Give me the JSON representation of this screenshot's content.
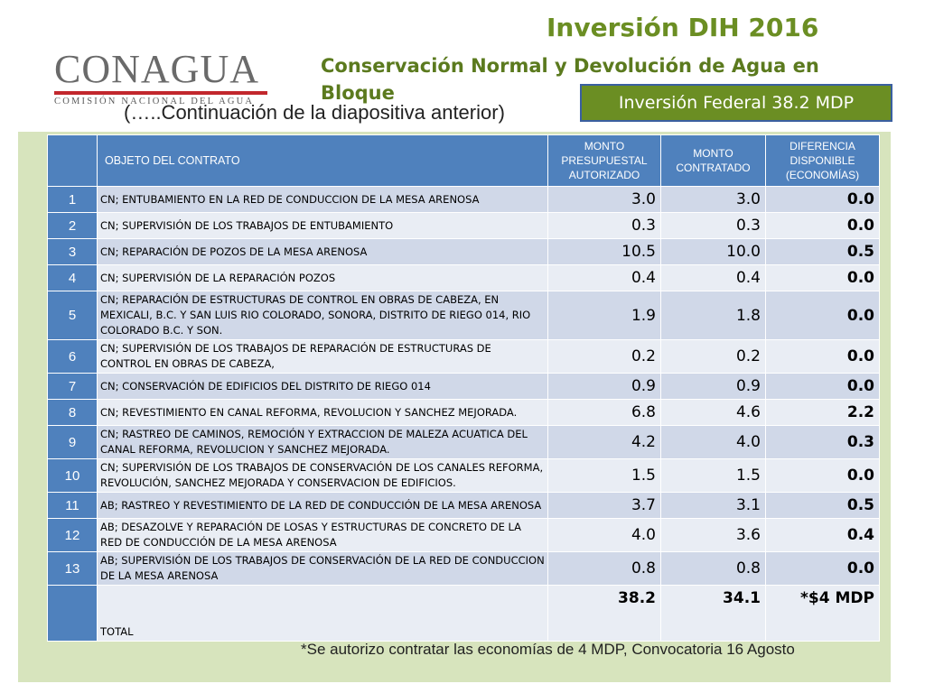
{
  "logo": {
    "word": "CONAGUA",
    "subtitle": "COMISIÓN NACIONAL DEL AGUA",
    "bar_color": "#c2272d"
  },
  "title": "Inversión DIH 2016",
  "subtitle": "Conservación Normal y Devolución de Agua en Bloque",
  "investment_badge": "Inversión Federal 38.2 MDP",
  "continuation_note": "(…..Continuación de la diapositiva anterior)",
  "colors": {
    "title_green": "#6b8e23",
    "header_blue": "#4f81bd",
    "panel_green": "#d7e4bd"
  },
  "table": {
    "headers": {
      "num": "",
      "objeto": "OBJETO DEL CONTRATO",
      "presupuestal": "MONTO PRESUPUESTAL AUTORIZADO",
      "contratado": "MONTO CONTRATADO",
      "diferencia": "DIFERENCIA DISPONIBLE (ECONOMÍAS)"
    },
    "rows": [
      {
        "num": "1",
        "desc": "CN; ENTUBAMIENTO EN LA RED DE CONDUCCION DE LA MESA ARENOSA",
        "autorizado": "3.0",
        "contratado": "3.0",
        "diferencia": "0.0"
      },
      {
        "num": "2",
        "desc": "CN; SUPERVISIÓN DE LOS TRABAJOS DE  ENTUBAMIENTO",
        "autorizado": "0.3",
        "contratado": "0.3",
        "diferencia": "0.0"
      },
      {
        "num": "3",
        "desc": "CN; REPARACIÓN DE POZOS DE LA MESA ARENOSA",
        "autorizado": "10.5",
        "contratado": "10.0",
        "diferencia": "0.5"
      },
      {
        "num": "4",
        "desc": "CN; SUPERVISIÓN DE LA REPARACIÓN  POZOS",
        "autorizado": "0.4",
        "contratado": "0.4",
        "diferencia": "0.0"
      },
      {
        "num": "5",
        "desc": "CN; REPARACIÓN DE ESTRUCTURAS DE CONTROL EN OBRAS DE CABEZA, EN MEXICALI, B.C. Y SAN LUIS RIO COLORADO, SONORA, DISTRITO DE RIEGO 014, RIO COLORADO B.C. Y SON.",
        "autorizado": "1.9",
        "contratado": "1.8",
        "diferencia": "0.0"
      },
      {
        "num": "6",
        "desc": "CN; SUPERVISIÓN DE LOS TRABAJOS DE REPARACIÓN DE ESTRUCTURAS DE CONTROL EN OBRAS DE CABEZA,",
        "autorizado": "0.2",
        "contratado": "0.2",
        "diferencia": "0.0"
      },
      {
        "num": "7",
        "desc": "CN; CONSERVACIÓN DE EDIFICIOS DEL DISTRITO DE RIEGO 014",
        "autorizado": "0.9",
        "contratado": "0.9",
        "diferencia": "0.0"
      },
      {
        "num": "8",
        "desc": "CN; REVESTIMIENTO EN CANAL REFORMA, REVOLUCION Y SANCHEZ MEJORADA.",
        "autorizado": "6.8",
        "contratado": "4.6",
        "diferencia": "2.2"
      },
      {
        "num": "9",
        "desc": "CN; RASTREO DE CAMINOS, REMOCIÓN Y EXTRACCION DE MALEZA ACUATICA  DEL CANAL REFORMA, REVOLUCION Y SANCHEZ MEJORADA.",
        "autorizado": "4.2",
        "contratado": "4.0",
        "diferencia": "0.3"
      },
      {
        "num": "10",
        "desc": "CN; SUPERVISIÓN DE LOS TRABAJOS DE CONSERVACIÓN DE LOS CANALES REFORMA, REVOLUCIÓN, SANCHEZ MEJORADA Y CONSERVACION DE EDIFICIOS.",
        "autorizado": "1.5",
        "contratado": "1.5",
        "diferencia": "0.0"
      },
      {
        "num": "11",
        "desc": "AB; RASTREO Y REVESTIMIENTO DE LA RED DE CONDUCCIÓN DE LA MESA ARENOSA",
        "autorizado": "3.7",
        "contratado": "3.1",
        "diferencia": "0.5"
      },
      {
        "num": "12",
        "desc": "AB; DESAZOLVE Y REPARACIÓN DE LOSAS Y ESTRUCTURAS DE CONCRETO DE LA RED DE CONDUCCIÓN DE LA MESA ARENOSA",
        "autorizado": "4.0",
        "contratado": "3.6",
        "diferencia": "0.4"
      },
      {
        "num": "13",
        "desc": "AB; SUPERVISIÓN DE LOS TRABAJOS DE CONSERVACIÓN DE LA RED DE CONDUCCION DE LA MESA ARENOSA",
        "autorizado": "0.8",
        "contratado": "0.8",
        "diferencia": "0.0"
      }
    ],
    "total": {
      "num": "",
      "desc": "TOTAL",
      "autorizado": "38.2",
      "contratado": "34.1",
      "diferencia": "*$4 MDP"
    }
  },
  "footnote": "*Se autorizo contratar las economías de 4 MDP, Convocatoria 16 Agosto"
}
